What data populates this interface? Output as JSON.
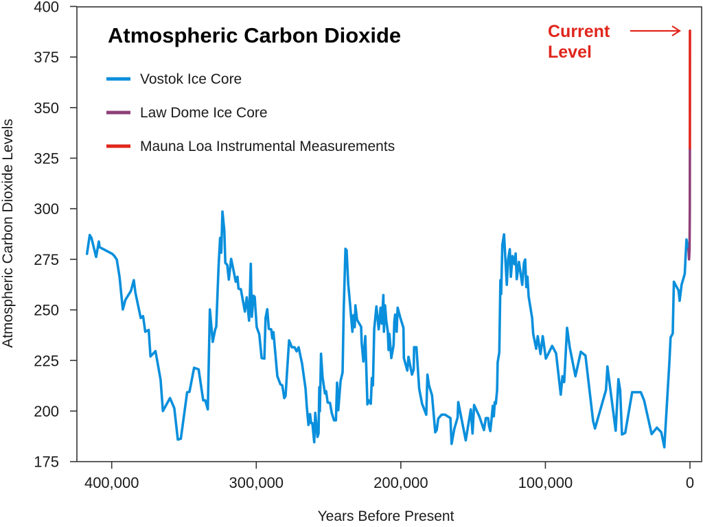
{
  "chart_data": {
    "type": "line",
    "title": "Atmospheric Carbon Dioxide",
    "xlabel": "Years Before Present",
    "ylabel": "Atmospheric Carbon Dioxide Levels",
    "xlim": [
      420000,
      0
    ],
    "ylim": [
      175,
      400
    ],
    "x_reversed": true,
    "grid": false,
    "legend_placement": "top-left",
    "xticks": [
      400000,
      300000,
      200000,
      100000,
      0
    ],
    "xtick_labels": [
      "400,000",
      "300,000",
      "200,000",
      "100,000",
      "0"
    ],
    "yticks": [
      175,
      200,
      225,
      250,
      275,
      300,
      325,
      350,
      375,
      400
    ],
    "ytick_labels": [
      "175",
      "200",
      "225",
      "250",
      "275",
      "300",
      "325",
      "350",
      "375",
      "400"
    ],
    "annotation": {
      "lines": [
        "Current",
        "Level"
      ],
      "color": "#e0261c",
      "value": 388
    },
    "series": [
      {
        "name": "Vostok Ice Core",
        "color": "#0a8fdc",
        "points": [
          [
            417100,
            277.7
          ],
          [
            415200,
            287
          ],
          [
            414000,
            285.6
          ],
          [
            410800,
            276.2
          ],
          [
            408900,
            283.8
          ],
          [
            408400,
            281
          ],
          [
            399700,
            277.7
          ],
          [
            398100,
            276.6
          ],
          [
            396500,
            274.9
          ],
          [
            394600,
            266.4
          ],
          [
            392300,
            250.2
          ],
          [
            390500,
            255
          ],
          [
            386700,
            259.4
          ],
          [
            384700,
            264.7
          ],
          [
            383600,
            258.4
          ],
          [
            379900,
            246
          ],
          [
            378300,
            246.9
          ],
          [
            376800,
            239.2
          ],
          [
            374400,
            240.1
          ],
          [
            373200,
            227
          ],
          [
            369700,
            229.6
          ],
          [
            366200,
            215.5
          ],
          [
            364600,
            200
          ],
          [
            359700,
            206.4
          ],
          [
            356700,
            201.4
          ],
          [
            354300,
            185.9
          ],
          [
            352200,
            186.3
          ],
          [
            347800,
            209.3
          ],
          [
            346200,
            209.5
          ],
          [
            343000,
            221.4
          ],
          [
            339900,
            220.6
          ],
          [
            336700,
            205.3
          ],
          [
            335300,
            205.3
          ],
          [
            333500,
            200.8
          ],
          [
            332100,
            250.2
          ],
          [
            330100,
            234.2
          ],
          [
            328400,
            240.4
          ],
          [
            327700,
            241.7
          ],
          [
            326100,
            270.9
          ],
          [
            325000,
            285.6
          ],
          [
            324200,
            278.3
          ],
          [
            323400,
            298.6
          ],
          [
            322100,
            289
          ],
          [
            321400,
            273.2
          ],
          [
            320100,
            272.3
          ],
          [
            319000,
            265
          ],
          [
            317400,
            275.2
          ],
          [
            315800,
            269.8
          ],
          [
            314200,
            263.9
          ],
          [
            313000,
            266.4
          ],
          [
            312300,
            260.5
          ],
          [
            310700,
            260.2
          ],
          [
            307900,
            249.2
          ],
          [
            306600,
            256.2
          ],
          [
            305000,
            244.7
          ],
          [
            303800,
            272.8
          ],
          [
            303100,
            246.6
          ],
          [
            301900,
            257
          ],
          [
            301100,
            256.4
          ],
          [
            299700,
            241.5
          ],
          [
            297900,
            237.9
          ],
          [
            296300,
            226.2
          ],
          [
            294400,
            225.9
          ],
          [
            293600,
            246
          ],
          [
            292400,
            250.3
          ],
          [
            291300,
            240.6
          ],
          [
            289700,
            240.4
          ],
          [
            288900,
            235.9
          ],
          [
            288100,
            239
          ],
          [
            285400,
            217.2
          ],
          [
            283300,
            213.2
          ],
          [
            282000,
            212.7
          ],
          [
            280600,
            206.4
          ],
          [
            279700,
            207.6
          ],
          [
            278600,
            220.9
          ],
          [
            277300,
            234.9
          ],
          [
            275400,
            231.5
          ],
          [
            273500,
            231.5
          ],
          [
            272100,
            229.5
          ],
          [
            270700,
            231.5
          ],
          [
            268300,
            223.4
          ],
          [
            265900,
            211
          ],
          [
            265100,
            202.5
          ],
          [
            263900,
            193.1
          ],
          [
            262800,
            198.5
          ],
          [
            262000,
            194
          ],
          [
            261200,
            194
          ],
          [
            259900,
            184.6
          ],
          [
            259200,
            199.1
          ],
          [
            257700,
            187.2
          ],
          [
            256900,
            188.9
          ],
          [
            256400,
            211.8
          ],
          [
            256000,
            199.9
          ],
          [
            255200,
            228.3
          ],
          [
            254100,
            216.6
          ],
          [
            252500,
            208.7
          ],
          [
            251700,
            209.8
          ],
          [
            250600,
            204.2
          ],
          [
            249000,
            204
          ],
          [
            247800,
            199.1
          ],
          [
            246200,
            195.4
          ],
          [
            244900,
            195.4
          ],
          [
            244100,
            214
          ],
          [
            243300,
            200.4
          ],
          [
            241700,
            214.9
          ],
          [
            240300,
            219.1
          ],
          [
            239500,
            250.5
          ],
          [
            238300,
            280.2
          ],
          [
            237500,
            279.4
          ],
          [
            236400,
            263
          ],
          [
            235100,
            252.8
          ],
          [
            234300,
            246
          ],
          [
            233500,
            239.2
          ],
          [
            232700,
            247.4
          ],
          [
            231900,
            241.5
          ],
          [
            231400,
            252.2
          ],
          [
            230300,
            245.1
          ],
          [
            227500,
            241.7
          ],
          [
            227100,
            233.8
          ],
          [
            225900,
            224.5
          ],
          [
            224600,
            237
          ],
          [
            223100,
            203.3
          ],
          [
            222100,
            205.3
          ],
          [
            220800,
            203.6
          ],
          [
            220000,
            216.3
          ],
          [
            219300,
            212.7
          ],
          [
            218400,
            240.6
          ],
          [
            216900,
            251.7
          ],
          [
            215300,
            240.4
          ],
          [
            214000,
            251.1
          ],
          [
            213200,
            243.2
          ],
          [
            212100,
            257.3
          ],
          [
            211700,
            239.2
          ],
          [
            210900,
            252.2
          ],
          [
            210100,
            244.9
          ],
          [
            209000,
            239.2
          ],
          [
            208500,
            230.2
          ],
          [
            207900,
            238.1
          ],
          [
            206600,
            226.2
          ],
          [
            205000,
            232.5
          ],
          [
            204500,
            244.3
          ],
          [
            203900,
            247.7
          ],
          [
            202900,
            239.2
          ],
          [
            202200,
            251.1
          ],
          [
            200300,
            246
          ],
          [
            198200,
            241.1
          ],
          [
            197900,
            226.2
          ],
          [
            195500,
            220
          ],
          [
            194700,
            226.8
          ],
          [
            192300,
            218
          ],
          [
            191100,
            220.6
          ],
          [
            190800,
            231.5
          ],
          [
            189200,
            231.5
          ],
          [
            187300,
            211
          ],
          [
            185300,
            203.6
          ],
          [
            182400,
            198.2
          ],
          [
            181600,
            218
          ],
          [
            180500,
            212.7
          ],
          [
            178400,
            207.8
          ],
          [
            176200,
            189.5
          ],
          [
            175200,
            190.6
          ],
          [
            174100,
            196.3
          ],
          [
            171800,
            198.2
          ],
          [
            169400,
            198.2
          ],
          [
            165700,
            196.5
          ],
          [
            164900,
            183.8
          ],
          [
            163000,
            191.2
          ],
          [
            160700,
            196.8
          ],
          [
            160300,
            204.4
          ],
          [
            155100,
            185.5
          ],
          [
            151600,
            200.8
          ],
          [
            150400,
            188.9
          ],
          [
            149300,
            203
          ],
          [
            145700,
            197.4
          ],
          [
            142500,
            190.6
          ],
          [
            141200,
            196.5
          ],
          [
            139600,
            196.5
          ],
          [
            139000,
            192.6
          ],
          [
            138100,
            190.1
          ],
          [
            137200,
            196.3
          ],
          [
            136400,
            202.5
          ],
          [
            135700,
            197.4
          ],
          [
            135000,
            204.4
          ],
          [
            134300,
            203.6
          ],
          [
            133400,
            210.4
          ],
          [
            133000,
            224
          ],
          [
            131900,
            229.1
          ],
          [
            131100,
            264.7
          ],
          [
            130600,
            257.9
          ],
          [
            129800,
            282.2
          ],
          [
            128600,
            287.3
          ],
          [
            127700,
            275.4
          ],
          [
            126700,
            262.4
          ],
          [
            125800,
            274.9
          ],
          [
            124600,
            280
          ],
          [
            123900,
            266.4
          ],
          [
            122700,
            276.6
          ],
          [
            121400,
            272.6
          ],
          [
            120600,
            277.9
          ],
          [
            119800,
            265.2
          ],
          [
            118300,
            273.7
          ],
          [
            116000,
            262.4
          ],
          [
            114800,
            273.4
          ],
          [
            114000,
            274.9
          ],
          [
            113200,
            261.3
          ],
          [
            112400,
            266.4
          ],
          [
            111600,
            256.7
          ],
          [
            109200,
            246
          ],
          [
            108400,
            238.1
          ],
          [
            106400,
            230.8
          ],
          [
            105300,
            237
          ],
          [
            103400,
            228.2
          ],
          [
            101800,
            237
          ],
          [
            99700,
            225.9
          ],
          [
            95300,
            232.2
          ],
          [
            92600,
            228.5
          ],
          [
            89400,
            208.1
          ],
          [
            88200,
            217.2
          ],
          [
            87000,
            214.3
          ],
          [
            85000,
            241.1
          ],
          [
            83100,
            231.3
          ],
          [
            79200,
            217.2
          ],
          [
            75500,
            229.3
          ],
          [
            72300,
            227.4
          ],
          [
            67000,
            195.1
          ],
          [
            65700,
            191.4
          ],
          [
            58100,
            210.4
          ],
          [
            57100,
            222
          ],
          [
            51400,
            190.3
          ],
          [
            49500,
            215.7
          ],
          [
            48300,
            210.4
          ],
          [
            47000,
            188.4
          ],
          [
            44800,
            189.2
          ],
          [
            40000,
            209.3
          ],
          [
            34000,
            209.3
          ],
          [
            31700,
            205.3
          ],
          [
            26500,
            188.6
          ],
          [
            22900,
            191.8
          ],
          [
            19800,
            189.5
          ],
          [
            17700,
            182.1
          ],
          [
            14200,
            224.5
          ],
          [
            13400,
            236.4
          ],
          [
            11900,
            238.3
          ],
          [
            11100,
            263.9
          ],
          [
            7900,
            259.6
          ],
          [
            7100,
            254.5
          ],
          [
            5800,
            262.4
          ],
          [
            3600,
            267.8
          ],
          [
            2400,
            284.8
          ],
          [
            1100,
            280
          ]
        ]
      },
      {
        "name": "Law Dome Ice Core",
        "color": "#8e3f78",
        "points": [
          [
            1000,
            280
          ],
          [
            600,
            275
          ],
          [
            300,
            280
          ],
          [
            100,
            300
          ],
          [
            50,
            330
          ]
        ]
      },
      {
        "name": "Mauna Loa Instrumental Measurements",
        "color": "#e0261c",
        "points": [
          [
            50,
            330
          ],
          [
            0,
            388
          ]
        ]
      }
    ]
  }
}
